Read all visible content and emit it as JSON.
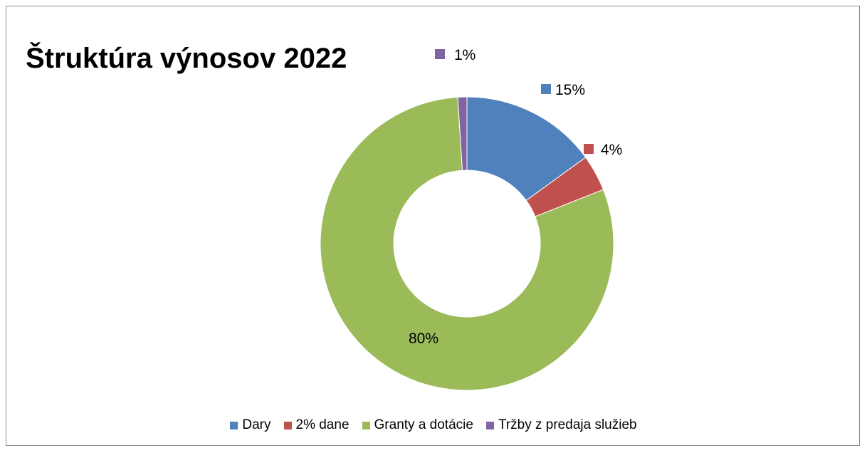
{
  "chart_data": {
    "type": "pie",
    "style": "doughnut",
    "title": "Štruktúra výnosov 2022",
    "categories": [
      "Dary",
      "2% dane",
      "Granty a dotácie",
      "Tržby z predaja služieb"
    ],
    "values": [
      15,
      4,
      80,
      1
    ],
    "labels": [
      "15%",
      "4%",
      "80%",
      "1%"
    ],
    "colors": [
      "#4f81bd",
      "#c0504d",
      "#9bbb59",
      "#8064a2"
    ],
    "legend": "bottom"
  }
}
